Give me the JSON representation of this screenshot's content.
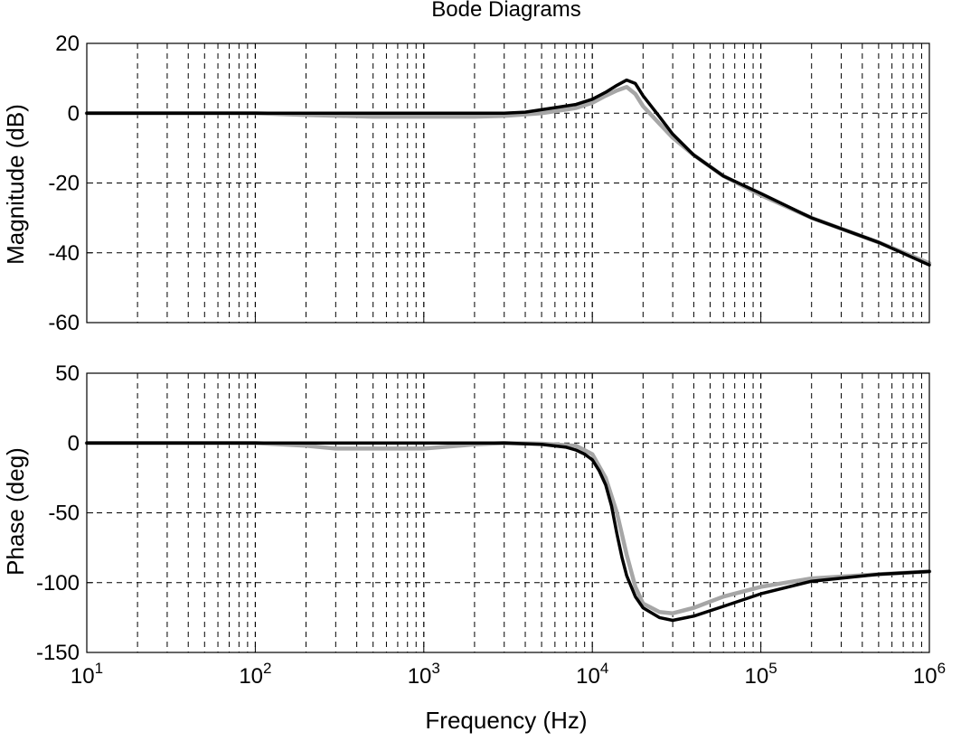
{
  "chart_data": [
    {
      "type": "line",
      "title": "Bode Diagrams",
      "ylabel": "Magnitude (dB)",
      "xlabel": "",
      "xscale": "log",
      "xlim": [
        10,
        1000000
      ],
      "ylim": [
        -60,
        20
      ],
      "yticks": [
        "20",
        "0",
        "-20",
        "-40",
        "-60"
      ],
      "ytick_values": [
        20,
        0,
        -20,
        -40,
        -60
      ],
      "grid": true,
      "grid_style": "dashed",
      "series": [
        {
          "color": "#a6a6a6",
          "x": [
            10,
            100,
            200,
            500,
            1000,
            2000,
            3000,
            5000,
            8000,
            10000,
            12000,
            14000,
            16000,
            18000,
            20000,
            25000,
            30000,
            40000,
            60000,
            100000,
            200000,
            500000,
            1000000
          ],
          "y": [
            0,
            0,
            -0.5,
            -1,
            -1,
            -1,
            -0.8,
            0,
            1.5,
            3,
            5,
            6.5,
            7.5,
            5.5,
            2,
            -3,
            -7,
            -12,
            -18,
            -23.5,
            -30,
            -37,
            -43
          ]
        },
        {
          "color": "#000000",
          "x": [
            10,
            100,
            200,
            500,
            1000,
            2000,
            3000,
            4000,
            5000,
            8000,
            10000,
            12000,
            14000,
            16000,
            18000,
            20000,
            25000,
            30000,
            40000,
            60000,
            100000,
            200000,
            500000,
            1000000
          ],
          "y": [
            0,
            0,
            0,
            0,
            0,
            0,
            0,
            0.3,
            1,
            2.5,
            4,
            6,
            8,
            9.5,
            8.5,
            5,
            -1,
            -6,
            -12,
            -18,
            -23,
            -30,
            -37,
            -43.5
          ]
        }
      ]
    },
    {
      "type": "line",
      "title": "",
      "ylabel": "Phase (deg)",
      "xlabel": "Frequency (Hz)",
      "xscale": "log",
      "xlim": [
        10,
        1000000
      ],
      "ylim": [
        -150,
        50
      ],
      "yticks": [
        "50",
        "0",
        "-50",
        "-100",
        "-150"
      ],
      "ytick_values": [
        50,
        0,
        -50,
        -100,
        -150
      ],
      "xticks": [
        {
          "value": 10,
          "base": "10",
          "exp": "1"
        },
        {
          "value": 100,
          "base": "10",
          "exp": "2"
        },
        {
          "value": 1000,
          "base": "10",
          "exp": "3"
        },
        {
          "value": 10000,
          "base": "10",
          "exp": "4"
        },
        {
          "value": 100000,
          "base": "10",
          "exp": "5"
        },
        {
          "value": 1000000,
          "base": "10",
          "exp": "6"
        }
      ],
      "grid": true,
      "grid_style": "dashed",
      "series": [
        {
          "color": "#a6a6a6",
          "x": [
            10,
            100,
            200,
            300,
            500,
            1000,
            2000,
            3000,
            5000,
            8000,
            10000,
            12000,
            14000,
            16000,
            18000,
            20000,
            25000,
            30000,
            40000,
            60000,
            100000,
            200000,
            500000,
            1000000
          ],
          "y": [
            0,
            0,
            -2,
            -4,
            -4,
            -4,
            -1,
            0,
            -0.5,
            -2,
            -8,
            -25,
            -50,
            -80,
            -103,
            -115,
            -121,
            -122,
            -118,
            -110,
            -103,
            -97,
            -94,
            -92
          ]
        },
        {
          "color": "#000000",
          "x": [
            10,
            100,
            1000,
            3000,
            5000,
            7000,
            8000,
            9000,
            10000,
            11000,
            12000,
            13000,
            14000,
            15000,
            16000,
            18000,
            20000,
            25000,
            30000,
            40000,
            60000,
            100000,
            200000,
            500000,
            1000000
          ],
          "y": [
            0,
            0,
            0,
            0,
            -1,
            -3,
            -5,
            -8,
            -12,
            -20,
            -30,
            -45,
            -65,
            -82,
            -95,
            -110,
            -118,
            -125,
            -127,
            -124,
            -117,
            -108,
            -99,
            -94,
            -92
          ]
        }
      ]
    }
  ]
}
